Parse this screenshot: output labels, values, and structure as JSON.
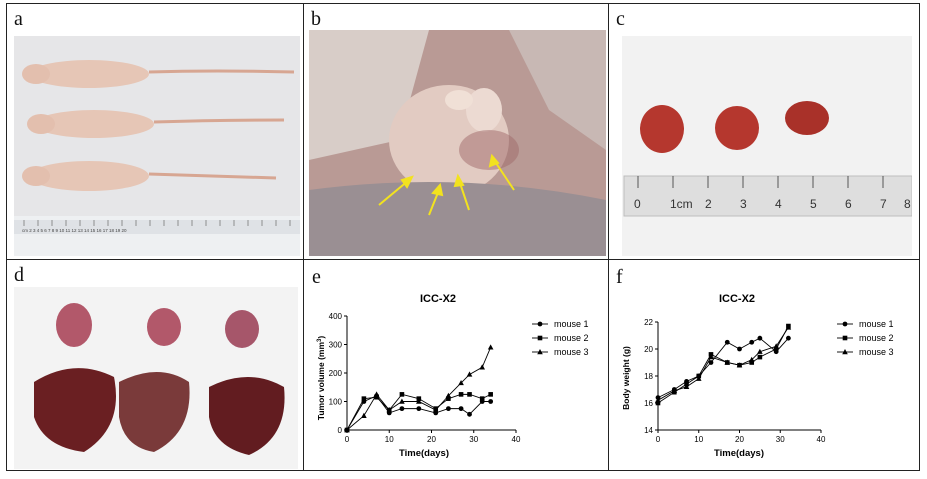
{
  "panels": {
    "a": "a",
    "b": "b",
    "c": "c",
    "d": "d",
    "e": "e",
    "f": "f"
  },
  "photo_a": {
    "ruler_text": "cm 2 3 4 5 6 7 8 9 10 11 12 13 14 15 16 17 18 19 20",
    "colors": {
      "bg": "#e6e6e8",
      "mouse": "#e6c6b6",
      "tail": "#d7a692"
    }
  },
  "photo_b": {
    "colors": {
      "bg": "#b99a95",
      "arrow": "#f2e21f"
    }
  },
  "photo_c": {
    "ruler_numbers": [
      "0",
      "1cm",
      "2",
      "3",
      "4",
      "5",
      "6",
      "7",
      "8"
    ],
    "colors": {
      "bg": "#f2f2f2",
      "tumor": "#b5372e"
    }
  },
  "photo_d": {
    "colors": {
      "lung": "#b2586a",
      "liver": "#6a1f22",
      "bg": "#f3f3f3"
    }
  },
  "chart_data": [
    {
      "type": "line",
      "title": "ICC-X2",
      "xlabel": "Time(days)",
      "ylabel": "Tumor volume (mm³)",
      "ylabel_main": "Tumor volume (mm",
      "ylabel_sup": "3",
      "ylabel_end": ")",
      "xlim": [
        0,
        40
      ],
      "ylim": [
        0,
        400
      ],
      "xticks": [
        0,
        10,
        20,
        30,
        40
      ],
      "yticks": [
        0,
        100,
        200,
        300,
        400
      ],
      "series": [
        {
          "name": "mouse 1",
          "marker": "circle",
          "x": [
            0,
            4,
            7,
            10,
            13,
            17,
            21,
            24,
            27,
            29,
            32,
            34
          ],
          "y": [
            0,
            100,
            120,
            60,
            75,
            75,
            60,
            75,
            75,
            55,
            100,
            100
          ]
        },
        {
          "name": "mouse 2",
          "marker": "square",
          "x": [
            0,
            4,
            7,
            10,
            13,
            17,
            21,
            24,
            27,
            29,
            32,
            34
          ],
          "y": [
            0,
            110,
            115,
            70,
            125,
            110,
            75,
            110,
            125,
            125,
            110,
            125
          ]
        },
        {
          "name": "mouse 3",
          "marker": "triangle",
          "x": [
            0,
            4,
            7,
            10,
            13,
            17,
            21,
            24,
            27,
            29,
            32,
            34
          ],
          "y": [
            0,
            50,
            125,
            70,
            100,
            100,
            70,
            120,
            165,
            195,
            220,
            290
          ]
        }
      ]
    },
    {
      "type": "line",
      "title": "ICC-X2",
      "xlabel": "Time(days)",
      "ylabel": "Body weight (g)",
      "xlim": [
        0,
        40
      ],
      "ylim": [
        14,
        22
      ],
      "xticks": [
        0,
        10,
        20,
        30,
        40
      ],
      "yticks": [
        14,
        16,
        18,
        20,
        22
      ],
      "series": [
        {
          "name": "mouse 1",
          "marker": "circle",
          "x": [
            0,
            4,
            7,
            10,
            13,
            17,
            20,
            23,
            25,
            29,
            32
          ],
          "y": [
            16.4,
            17.0,
            17.6,
            18.0,
            19.0,
            20.5,
            20.0,
            20.5,
            20.8,
            19.8,
            20.8
          ]
        },
        {
          "name": "mouse 2",
          "marker": "square",
          "x": [
            0,
            4,
            7,
            10,
            13,
            17,
            20,
            23,
            25,
            29,
            32
          ],
          "y": [
            16.0,
            16.8,
            17.4,
            18.0,
            19.6,
            19.0,
            18.8,
            19.0,
            19.4,
            20.0,
            21.7
          ]
        },
        {
          "name": "mouse 3",
          "marker": "triangle",
          "x": [
            0,
            4,
            7,
            10,
            13,
            17,
            20,
            23,
            25,
            29,
            32
          ],
          "y": [
            16.2,
            16.9,
            17.2,
            17.8,
            19.4,
            19.0,
            18.8,
            19.2,
            19.8,
            20.2,
            21.6
          ]
        }
      ]
    }
  ]
}
